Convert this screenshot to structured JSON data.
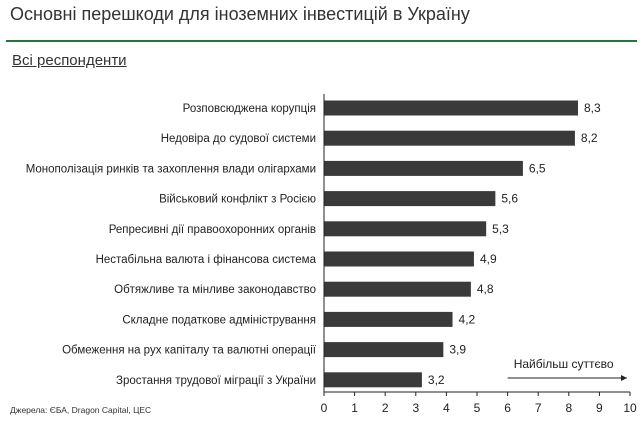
{
  "title": "Основні перешкоди для іноземних інвестицій в Україну",
  "subtitle": "Всі респонденти",
  "source": "Джерела: ЄБА, Dragon Capital, ЦЕС",
  "colors": {
    "bar": "#3a3a3a",
    "rule": "#1e7a3c"
  },
  "chart_data": {
    "type": "bar",
    "orientation": "horizontal",
    "categories": [
      "Розповсюджена корупція",
      "Недовіра до судової системи",
      "Монополізація ринків та захоплення влади олігархами",
      "Військовий конфлікт з Росією",
      "Репресивні дії правоохоронних органів",
      "Нестабільна валюта і фінансова система",
      "Обтяжливе та мінливе законодавство",
      "Складне податкове адміністрування",
      "Обмеження на рух капіталу та валютні операції",
      "Зростання трудової міграції з України"
    ],
    "values": [
      8.3,
      8.2,
      6.5,
      5.6,
      5.3,
      4.9,
      4.8,
      4.2,
      3.9,
      3.2
    ],
    "value_labels": [
      "8,3",
      "8,2",
      "6,5",
      "5,6",
      "5,3",
      "4,9",
      "4,8",
      "4,2",
      "3,9",
      "3,2"
    ],
    "xlim": [
      0,
      10
    ],
    "xticks": [
      "0",
      "1",
      "2",
      "3",
      "4",
      "5",
      "6",
      "7",
      "8",
      "9",
      "10"
    ],
    "grid": false,
    "annotation": "Найбільш суттєво"
  }
}
